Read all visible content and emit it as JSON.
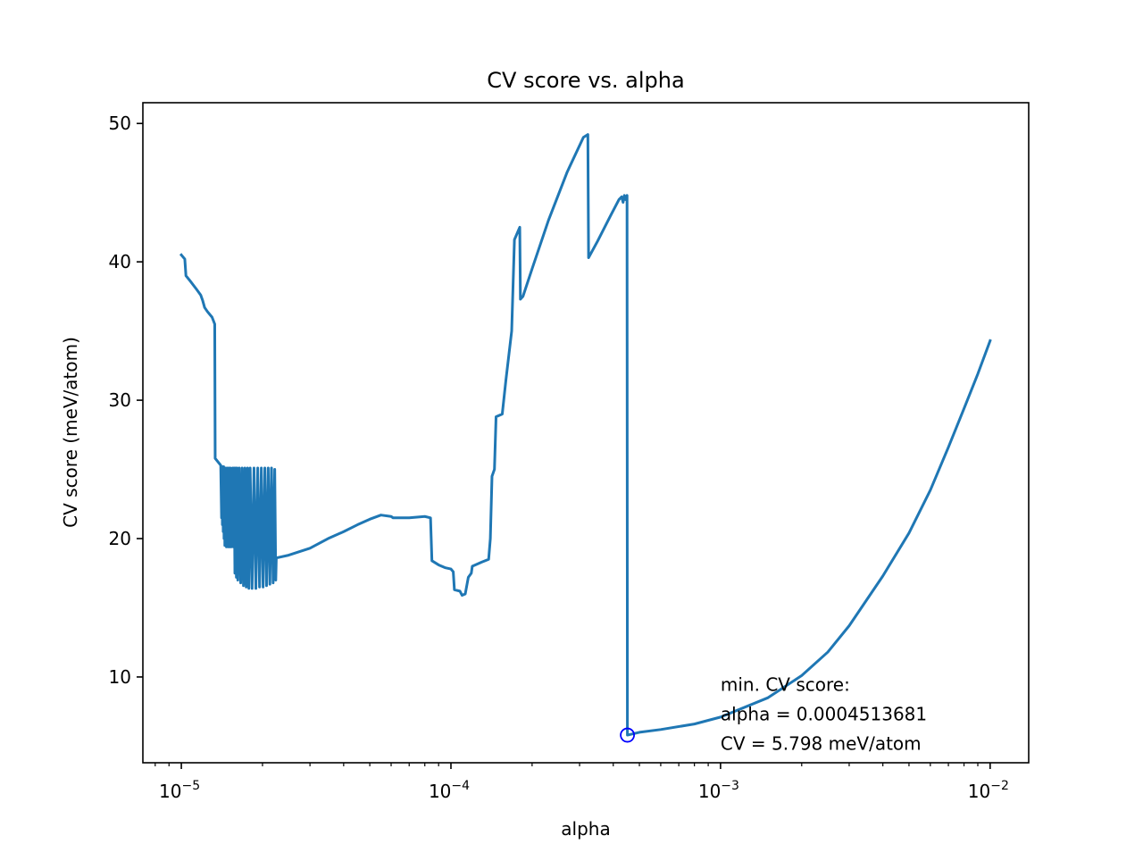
{
  "chart_data": {
    "type": "line",
    "title": "CV score vs. alpha",
    "xlabel": "alpha",
    "ylabel": "CV score (meV/atom)",
    "xscale": "log",
    "xlim": [
      7.2e-06,
      0.0139
    ],
    "ylim": [
      3.8,
      51.5
    ],
    "x_ticks": [
      {
        "value": 1e-05,
        "base": "10",
        "exp": "−5"
      },
      {
        "value": 0.0001,
        "base": "10",
        "exp": "−4"
      },
      {
        "value": 0.001,
        "base": "10",
        "exp": "−3"
      },
      {
        "value": 0.01,
        "base": "10",
        "exp": "−2"
      }
    ],
    "y_ticks": [
      {
        "value": 10,
        "label": "10"
      },
      {
        "value": 20,
        "label": "20"
      },
      {
        "value": 30,
        "label": "30"
      },
      {
        "value": 40,
        "label": "40"
      },
      {
        "value": 50,
        "label": "50"
      }
    ],
    "grid": false,
    "series_color": "#1f77b4",
    "series": [
      {
        "points": [
          [
            1e-05,
            40.5
          ],
          [
            1.03e-05,
            40.2
          ],
          [
            1.04e-05,
            39.0
          ],
          [
            1.08e-05,
            38.6
          ],
          [
            1.14e-05,
            38.0
          ],
          [
            1.18e-05,
            37.6
          ],
          [
            1.2e-05,
            37.2
          ],
          [
            1.22e-05,
            36.7
          ],
          [
            1.25e-05,
            36.4
          ],
          [
            1.3e-05,
            36.0
          ],
          [
            1.33e-05,
            35.5
          ],
          [
            1.335e-05,
            25.8
          ],
          [
            1.4e-05,
            25.3
          ],
          [
            1.41e-05,
            21.5
          ],
          [
            1.415e-05,
            25.2
          ],
          [
            1.42e-05,
            21.0
          ],
          [
            1.425e-05,
            25.2
          ],
          [
            1.43e-05,
            20.5
          ],
          [
            1.435e-05,
            25.2
          ],
          [
            1.44e-05,
            20.0
          ],
          [
            1.445e-05,
            25.1
          ],
          [
            1.45e-05,
            19.5
          ],
          [
            1.46e-05,
            25.1
          ],
          [
            1.47e-05,
            19.4
          ],
          [
            1.48e-05,
            25.1
          ],
          [
            1.49e-05,
            19.4
          ],
          [
            1.5e-05,
            25.1
          ],
          [
            1.51e-05,
            19.4
          ],
          [
            1.52e-05,
            25.1
          ],
          [
            1.53e-05,
            19.4
          ],
          [
            1.55e-05,
            25.1
          ],
          [
            1.56e-05,
            19.4
          ],
          [
            1.57e-05,
            25.1
          ],
          [
            1.58e-05,
            17.5
          ],
          [
            1.59e-05,
            25.1
          ],
          [
            1.6e-05,
            17.2
          ],
          [
            1.61e-05,
            25.1
          ],
          [
            1.62e-05,
            17.0
          ],
          [
            1.64e-05,
            25.1
          ],
          [
            1.66e-05,
            16.8
          ],
          [
            1.68e-05,
            25.1
          ],
          [
            1.7e-05,
            16.6
          ],
          [
            1.72e-05,
            25.1
          ],
          [
            1.74e-05,
            16.5
          ],
          [
            1.76e-05,
            25.1
          ],
          [
            1.78e-05,
            16.4
          ],
          [
            1.8e-05,
            25.1
          ],
          [
            1.83e-05,
            16.4
          ],
          [
            1.86e-05,
            25.1
          ],
          [
            1.89e-05,
            16.4
          ],
          [
            1.92e-05,
            25.1
          ],
          [
            1.95e-05,
            16.5
          ],
          [
            1.98e-05,
            25.1
          ],
          [
            2.01e-05,
            16.5
          ],
          [
            2.04e-05,
            25.1
          ],
          [
            2.07e-05,
            16.6
          ],
          [
            2.1e-05,
            25.1
          ],
          [
            2.13e-05,
            16.7
          ],
          [
            2.16e-05,
            25.1
          ],
          [
            2.19e-05,
            16.8
          ],
          [
            2.22e-05,
            25.0
          ],
          [
            2.24e-05,
            17.0
          ],
          [
            2.25e-05,
            18.6
          ],
          [
            2.5e-05,
            18.8
          ],
          [
            3e-05,
            19.3
          ],
          [
            3.5e-05,
            20.0
          ],
          [
            4e-05,
            20.5
          ],
          [
            4.5e-05,
            21.0
          ],
          [
            5e-05,
            21.4
          ],
          [
            5.5e-05,
            21.7
          ],
          [
            6e-05,
            21.6
          ],
          [
            6.1e-05,
            21.5
          ],
          [
            7e-05,
            21.5
          ],
          [
            8e-05,
            21.6
          ],
          [
            8.4e-05,
            21.5
          ],
          [
            8.5e-05,
            18.4
          ],
          [
            9e-05,
            18.1
          ],
          [
            9.5e-05,
            17.9
          ],
          [
            0.0001,
            17.8
          ],
          [
            0.000102,
            17.6
          ],
          [
            0.000103,
            16.3
          ],
          [
            0.000108,
            16.2
          ],
          [
            0.00011,
            15.9
          ],
          [
            0.000113,
            16.0
          ],
          [
            0.000116,
            17.2
          ],
          [
            0.000119,
            17.5
          ],
          [
            0.00012,
            18.0
          ],
          [
            0.00013,
            18.3
          ],
          [
            0.000138,
            18.5
          ],
          [
            0.00014,
            20.0
          ],
          [
            0.000142,
            24.5
          ],
          [
            0.000145,
            25.0
          ],
          [
            0.000147,
            28.8
          ],
          [
            0.000155,
            29.0
          ],
          [
            0.00016,
            31.5
          ],
          [
            0.000168,
            35.0
          ],
          [
            0.000172,
            41.6
          ],
          [
            0.00018,
            42.5
          ],
          [
            0.000181,
            37.3
          ],
          [
            0.000185,
            37.5
          ],
          [
            0.0002,
            39.5
          ],
          [
            0.00023,
            43.0
          ],
          [
            0.00027,
            46.5
          ],
          [
            0.00031,
            49.0
          ],
          [
            0.000322,
            49.2
          ],
          [
            0.000324,
            40.3
          ],
          [
            0.00035,
            41.5
          ],
          [
            0.00039,
            43.3
          ],
          [
            0.00042,
            44.5
          ],
          [
            0.00043,
            44.7
          ],
          [
            0.000435,
            44.3
          ],
          [
            0.00044,
            44.8
          ],
          [
            0.000445,
            44.5
          ],
          [
            0.00045,
            44.8
          ],
          [
            0.00045136,
            5.798
          ],
          [
            0.0005,
            6.0
          ],
          [
            0.0006,
            6.2
          ],
          [
            0.0008,
            6.6
          ],
          [
            0.001,
            7.1
          ],
          [
            0.0015,
            8.5
          ],
          [
            0.002,
            10.1
          ],
          [
            0.0025,
            11.8
          ],
          [
            0.003,
            13.7
          ],
          [
            0.004,
            17.3
          ],
          [
            0.005,
            20.4
          ],
          [
            0.006,
            23.5
          ],
          [
            0.007,
            26.6
          ],
          [
            0.008,
            29.4
          ],
          [
            0.009,
            31.9
          ],
          [
            0.01,
            34.3
          ]
        ]
      }
    ],
    "minimum": {
      "alpha": 0.0004513681,
      "cv": 5.798,
      "marker_color": "#0000ff"
    },
    "annotation": {
      "anchor": [
        0.001,
        9.0
      ],
      "lines": [
        "min. CV score:",
        "alpha = 0.0004513681",
        "CV = 5.798 meV/atom"
      ]
    }
  }
}
